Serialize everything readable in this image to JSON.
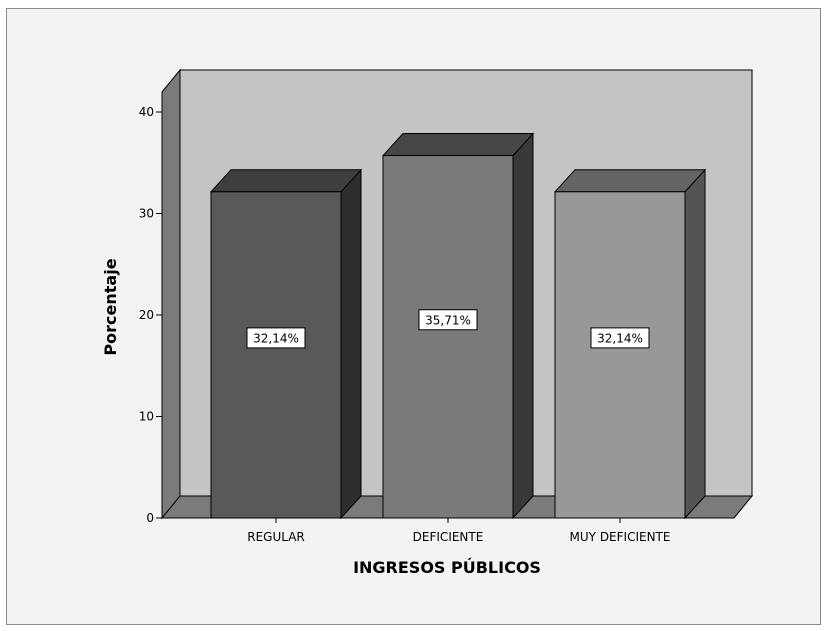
{
  "chart_data": {
    "type": "bar",
    "title": "",
    "xlabel": "INGRESOS PÚBLICOS",
    "ylabel": "Porcentaje",
    "categories": [
      "REGULAR",
      "DEFICIENTE",
      "MUY DEFICIENTE"
    ],
    "values": [
      32.14,
      35.71,
      32.14
    ],
    "data_labels": [
      "32,14%",
      "35,71%",
      "32,14%"
    ],
    "ylim": [
      0,
      40
    ],
    "yticks": [
      "0",
      "10",
      "20",
      "30",
      "40"
    ],
    "grid": false,
    "legend": "none",
    "three_d": true,
    "colors": {
      "wall_back": "#c4c4c4",
      "wall_left": "#7b7b7b",
      "floor": "#7b7b7b",
      "bars": [
        {
          "front": "#595959",
          "top": "#3e3e3e",
          "side": "#2e2e2e"
        },
        {
          "front": "#7a7a7a",
          "top": "#474747",
          "side": "#383838"
        },
        {
          "front": "#989898",
          "top": "#646464",
          "side": "#545454"
        }
      ]
    }
  }
}
